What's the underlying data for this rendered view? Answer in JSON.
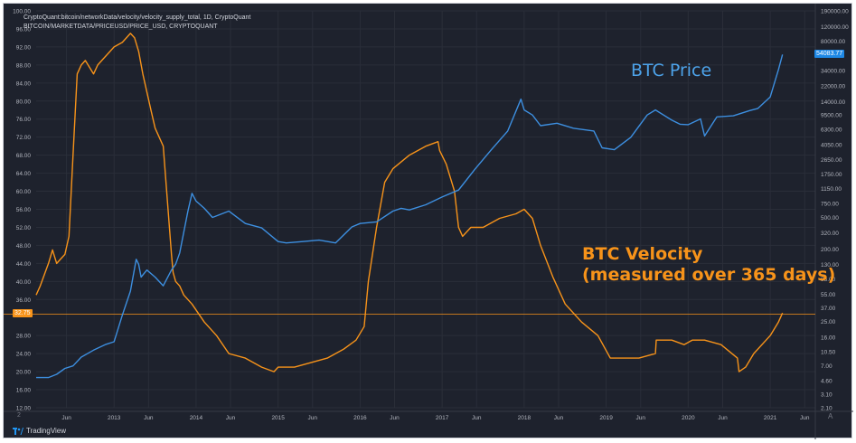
{
  "header": {
    "line1": "CryptoQuant:bitcoin/networkData/velocity/velocity_supply_total, 1D, CryptoQuant",
    "line2": "BITCOIN/MARKETDATA/PRICEUSD/PRICE_USD, CRYPTOQUANT"
  },
  "labels": {
    "price": "BTC Price",
    "velocity_line1": "BTC Velocity",
    "velocity_line2": "(measured over 365 days)"
  },
  "tags": {
    "price_last": "54083.77",
    "velocity_last": "32.75"
  },
  "footer": {
    "brand": "TradingView",
    "chevron": "A",
    "left_marker": "2"
  },
  "colors": {
    "background": "#1e222d",
    "price": "#3d8fe0",
    "velocity": "#f7931a",
    "grid": "#2a2e39",
    "axis_text": "#b2b5be"
  },
  "chart_data": {
    "type": "line",
    "x_axis": {
      "ticks": [
        "Jun",
        "2013",
        "Jun",
        "2014",
        "Jun",
        "2015",
        "Jun",
        "2016",
        "Jun",
        "2017",
        "Jun",
        "2018",
        "Jun",
        "2019",
        "Jun",
        "2020",
        "Jun",
        "2021",
        "Jun"
      ],
      "tick_times": [
        2012.42,
        2013.0,
        2013.42,
        2014.0,
        2014.42,
        2015.0,
        2015.42,
        2016.0,
        2016.42,
        2017.0,
        2017.42,
        2018.0,
        2018.42,
        2019.0,
        2019.42,
        2020.0,
        2020.42,
        2021.0,
        2021.42
      ],
      "range": [
        2012.05,
        2021.55
      ]
    },
    "y_left": {
      "ticks": [
        "100.00",
        "96.00",
        "92.00",
        "88.00",
        "84.00",
        "80.00",
        "76.00",
        "72.00",
        "68.00",
        "64.00",
        "60.00",
        "56.00",
        "52.00",
        "48.00",
        "44.00",
        "40.00",
        "36.00",
        "28.00",
        "24.00",
        "20.00",
        "16.00",
        "12.00"
      ],
      "range": [
        12,
        100
      ]
    },
    "y_right": {
      "scale": "log",
      "ticks": [
        "190000.00",
        "120000.00",
        "80000.00",
        "54083.77",
        "34000.00",
        "22000.00",
        "14000.00",
        "9500.00",
        "6300.00",
        "4050.00",
        "2650.00",
        "1750.00",
        "1150.00",
        "750.00",
        "500.00",
        "320.00",
        "200.00",
        "130.00",
        "85.00",
        "55.00",
        "37.00",
        "25.00",
        "16.00",
        "10.50",
        "7.00",
        "4.60",
        "3.10",
        "2.10"
      ],
      "range": [
        2.1,
        190000
      ]
    },
    "series": [
      {
        "name": "BTC Velocity",
        "axis": "left",
        "x": [
          2012.05,
          2012.1,
          2012.2,
          2012.25,
          2012.3,
          2012.35,
          2012.4,
          2012.45,
          2012.5,
          2012.55,
          2012.6,
          2012.65,
          2012.75,
          2012.8,
          2012.85,
          2012.95,
          2013.0,
          2013.1,
          2013.2,
          2013.25,
          2013.3,
          2013.35,
          2013.4,
          2013.45,
          2013.5,
          2013.6,
          2013.7,
          2013.72,
          2013.75,
          2013.8,
          2013.85,
          2013.95,
          2014.1,
          2014.25,
          2014.4,
          2014.6,
          2014.8,
          2014.95,
          2015.0,
          2015.2,
          2015.4,
          2015.6,
          2015.8,
          2015.95,
          2016.05,
          2016.1,
          2016.2,
          2016.3,
          2016.4,
          2016.6,
          2016.8,
          2016.95,
          2016.97,
          2017.05,
          2017.15,
          2017.2,
          2017.25,
          2017.35,
          2017.5,
          2017.7,
          2017.9,
          2018.0,
          2018.1,
          2018.2,
          2018.35,
          2018.5,
          2018.7,
          2018.9,
          2019.05,
          2019.2,
          2019.4,
          2019.6,
          2019.61,
          2019.8,
          2019.95,
          2020.05,
          2020.2,
          2020.4,
          2020.6,
          2020.62,
          2020.7,
          2020.8,
          2021.0,
          2021.1,
          2021.15
        ],
        "y": [
          37,
          39,
          44,
          47,
          44,
          45,
          46,
          50,
          68,
          86,
          88,
          89,
          86,
          88,
          89,
          91,
          92,
          93,
          95,
          94,
          91,
          86,
          82,
          78,
          74,
          70,
          46,
          42,
          40,
          39,
          37,
          35,
          31,
          28,
          24,
          23,
          21,
          20,
          21,
          21,
          22,
          23,
          25,
          27,
          30,
          40,
          52,
          62,
          65,
          68,
          70,
          71,
          69,
          66,
          60,
          52,
          50,
          52,
          52,
          54,
          55,
          56,
          54,
          48,
          41,
          35,
          31,
          28,
          23,
          23,
          23,
          24,
          27,
          27,
          26,
          27,
          27,
          26,
          23,
          20,
          21,
          24,
          28,
          31,
          33
        ]
      },
      {
        "name": "BTC Price",
        "axis": "right",
        "x": [
          2012.05,
          2012.2,
          2012.3,
          2012.4,
          2012.5,
          2012.6,
          2012.75,
          2012.9,
          2013.0,
          2013.1,
          2013.2,
          2013.27,
          2013.3,
          2013.33,
          2013.4,
          2013.5,
          2013.6,
          2013.7,
          2013.75,
          2013.8,
          2013.9,
          2013.95,
          2014.0,
          2014.1,
          2014.2,
          2014.4,
          2014.6,
          2014.8,
          2015.0,
          2015.1,
          2015.3,
          2015.5,
          2015.7,
          2015.9,
          2016.0,
          2016.2,
          2016.4,
          2016.5,
          2016.6,
          2016.8,
          2017.0,
          2017.2,
          2017.4,
          2017.6,
          2017.8,
          2017.96,
          2018.0,
          2018.1,
          2018.2,
          2018.4,
          2018.6,
          2018.85,
          2018.95,
          2019.1,
          2019.3,
          2019.5,
          2019.6,
          2019.8,
          2019.9,
          2020.0,
          2020.15,
          2020.2,
          2020.35,
          2020.55,
          2020.75,
          2020.85,
          2021.0,
          2021.1,
          2021.15
        ],
        "y": [
          5,
          5,
          5.5,
          6.5,
          7,
          9,
          11,
          13,
          14,
          30,
          60,
          150,
          130,
          90,
          110,
          90,
          70,
          110,
          130,
          180,
          600,
          1000,
          800,
          650,
          500,
          600,
          420,
          370,
          250,
          240,
          250,
          260,
          240,
          380,
          420,
          440,
          600,
          650,
          620,
          720,
          900,
          1100,
          2000,
          3500,
          6000,
          15000,
          11000,
          9500,
          7000,
          7500,
          6500,
          6000,
          3700,
          3500,
          5000,
          9500,
          11000,
          8200,
          7300,
          7200,
          8500,
          5200,
          9000,
          9300,
          10800,
          11500,
          16000,
          35000,
          54083
        ]
      }
    ],
    "last_values": {
      "BTC Price": 54083.77,
      "BTC Velocity": 32.75
    }
  }
}
